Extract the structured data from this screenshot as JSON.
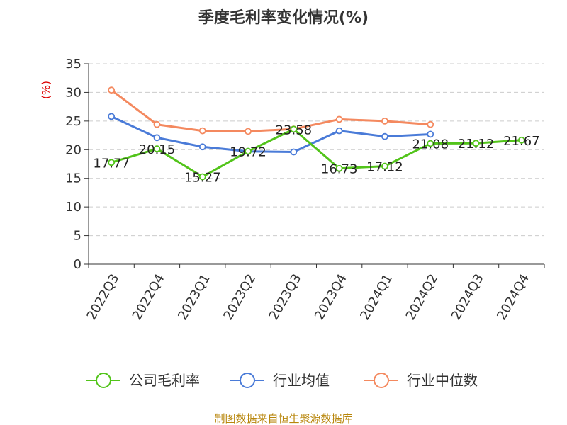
{
  "chart_data": {
    "type": "line",
    "title": "季度毛利率变化情况(%)",
    "ylabel": "(%)",
    "ylim": [
      0,
      35
    ],
    "yticks": [
      0,
      5,
      10,
      15,
      20,
      25,
      30,
      35
    ],
    "grid": true,
    "legend_position": "bottom",
    "categories": [
      "2022Q3",
      "2022Q4",
      "2023Q1",
      "2023Q2",
      "2023Q3",
      "2023Q4",
      "2024Q1",
      "2024Q2",
      "2024Q3",
      "2024Q4"
    ],
    "series": [
      {
        "name": "公司毛利率",
        "color": "#52c41a",
        "values": [
          17.77,
          20.15,
          15.27,
          19.72,
          23.58,
          16.73,
          17.12,
          21.08,
          21.12,
          21.67
        ],
        "labels": [
          "17.77",
          "20.15",
          "15.27",
          "19.72",
          "23.58",
          "16.73",
          "17.12",
          "21.08",
          "21.12",
          "21.67"
        ]
      },
      {
        "name": "行业均值",
        "color": "#4a7bd8",
        "values": [
          25.8,
          22.1,
          20.5,
          19.7,
          19.6,
          23.3,
          22.3,
          22.7,
          null,
          null
        ]
      },
      {
        "name": "行业中位数",
        "color": "#f4895f",
        "values": [
          30.4,
          24.4,
          23.3,
          23.2,
          23.6,
          25.3,
          25.0,
          24.4,
          null,
          null
        ]
      }
    ]
  },
  "source_text": "制图数据来自恒生聚源数据库"
}
